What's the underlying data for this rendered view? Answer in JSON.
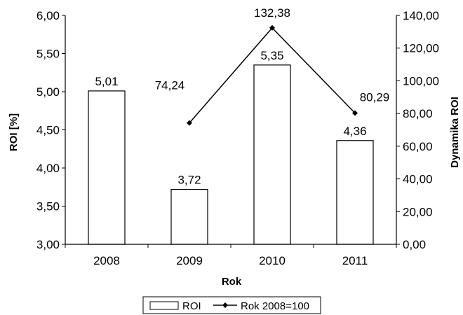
{
  "chart_data": {
    "type": "bar",
    "categories": [
      "2008",
      "2009",
      "2010",
      "2011"
    ],
    "series": [
      {
        "name": "ROI",
        "type": "bar",
        "axis": "left",
        "values": [
          5.01,
          3.72,
          5.35,
          4.36
        ],
        "labels": [
          "5,01",
          "3,72",
          "5,35",
          "4,36"
        ]
      },
      {
        "name": "Rok 2008=100",
        "type": "line",
        "axis": "right",
        "values": [
          null,
          74.24,
          132.38,
          80.29
        ],
        "labels": [
          "",
          "74,24",
          "132,38",
          "80,29"
        ]
      }
    ],
    "xlabel": "Rok",
    "ylabel": "ROI [%]",
    "y2label": "Dynamika ROI",
    "ylim": [
      3.0,
      6.0
    ],
    "y2lim": [
      0.0,
      140.0
    ],
    "yticks": [
      "3,00",
      "3,50",
      "4,00",
      "4,50",
      "5,00",
      "5,50",
      "6,00"
    ],
    "y2ticks": [
      "0,00",
      "20,00",
      "40,00",
      "60,00",
      "80,00",
      "100,00",
      "120,00",
      "140,00"
    ],
    "legend": {
      "position": "bottom-center",
      "entries": [
        "ROI",
        "Rok 2008=100"
      ]
    },
    "grid": false,
    "colors": {
      "bar_fill": "#ffffff",
      "bar_stroke": "#000000",
      "line": "#000000"
    }
  }
}
